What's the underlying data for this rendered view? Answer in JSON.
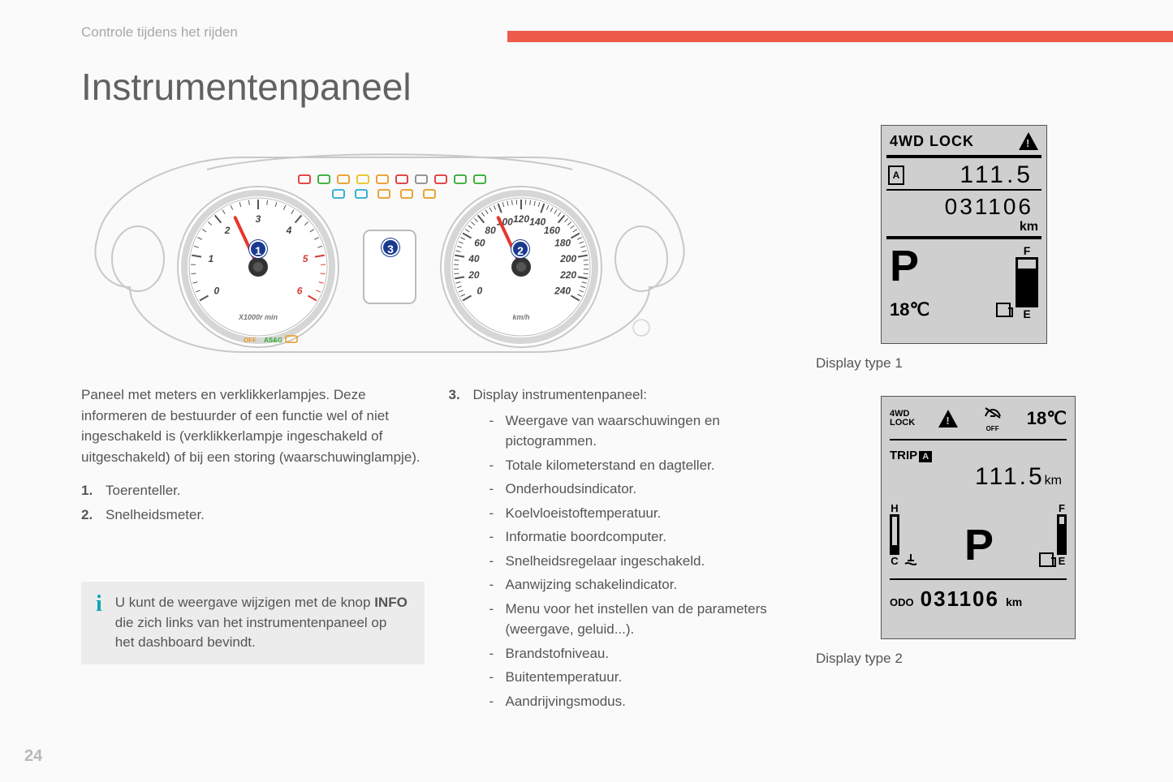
{
  "breadcrumb": "Controle tijdens het rijden",
  "page_title": "Instrumentenpaneel",
  "page_number": "24",
  "accent_color": "#ed5a4a",
  "intro_paragraph": "Paneel met meters en verklikkerlampjes. Deze informeren de bestuurder of een functie wel of niet ingeschakeld is (verklikkerlampje ingeschakeld of uitgeschakeld) of bij een storing (waarschuwinglampje).",
  "list_items": {
    "n1": "1.",
    "t1": "Toerenteller.",
    "n2": "2.",
    "t2": "Snelheidsmeter.",
    "n3": "3.",
    "t3": "Display instrumentenpaneel:"
  },
  "item3_sub": [
    "Weergave van waarschuwingen en pictogrammen.",
    "Totale kilometerstand en dagteller.",
    "Onderhoudsindicator.",
    "Koelvloeistoftemperatuur.",
    "Informatie boordcomputer.",
    "Snelheidsregelaar ingeschakeld.",
    "Aanwijzing schakelindicator.",
    "Menu voor het instellen van de parameters (weergave, geluid...).",
    "Brandstofniveau.",
    "Buitentemperatuur.",
    "Aandrijvingsmodus."
  ],
  "info_box": {
    "text_pre": "U kunt de weergave wijzigen met de knop ",
    "bold": "INFO",
    "text_post": " die zich links van het instrumentenpaneel op het dashboard bevindt."
  },
  "caption1": "Display type 1",
  "caption2": "Display type 2",
  "cluster": {
    "callouts": {
      "c1": "1",
      "c2": "2",
      "c3": "3"
    },
    "tacho": {
      "ticks": [
        "0",
        "1",
        "2",
        "3",
        "4",
        "5",
        "6"
      ],
      "unit": "X1000r min",
      "redline_from": 5,
      "needle_angle": -115
    },
    "speedo": {
      "ticks": [
        "0",
        "20",
        "40",
        "60",
        "80",
        "100",
        "120",
        "140",
        "160",
        "180",
        "200",
        "220",
        "240"
      ],
      "unit": "km/h",
      "needle_angle": -115
    },
    "indicator_colors_row1": [
      "#e03030",
      "#2eaa2e",
      "#e89a1e",
      "#e8c21e",
      "#e89a1e",
      "#e03030",
      "#8a8a8a",
      "#e03030",
      "#2eaa2e",
      "#2eaa2e"
    ],
    "indicator_colors_row2": [
      "#24a9d4",
      "#24a9d4",
      "#e89a1e",
      "#e89a1e",
      "#e89a1e"
    ]
  },
  "display1": {
    "lock_text": "4WD LOCK",
    "trip_letter": "A",
    "trip": "111.5",
    "odo": "031106",
    "km": "km",
    "gear": "P",
    "temp": "18℃",
    "fuel_full": "F",
    "fuel_empty": "E",
    "fuel_pct": 80
  },
  "display2": {
    "lock_text1": "4WD",
    "lock_text2": "LOCK",
    "off": "OFF",
    "temp": "18℃",
    "trip_label": "TRIP",
    "trip_letter": "A",
    "trip": "111.5",
    "trip_unit": "km",
    "gear": "P",
    "coolant_hot": "H",
    "coolant_cold": "C",
    "coolant_pct": 20,
    "fuel_full": "F",
    "fuel_empty": "E",
    "fuel_pct": 80,
    "odo_label": "ODO",
    "odo": "031106",
    "odo_unit": "km"
  }
}
